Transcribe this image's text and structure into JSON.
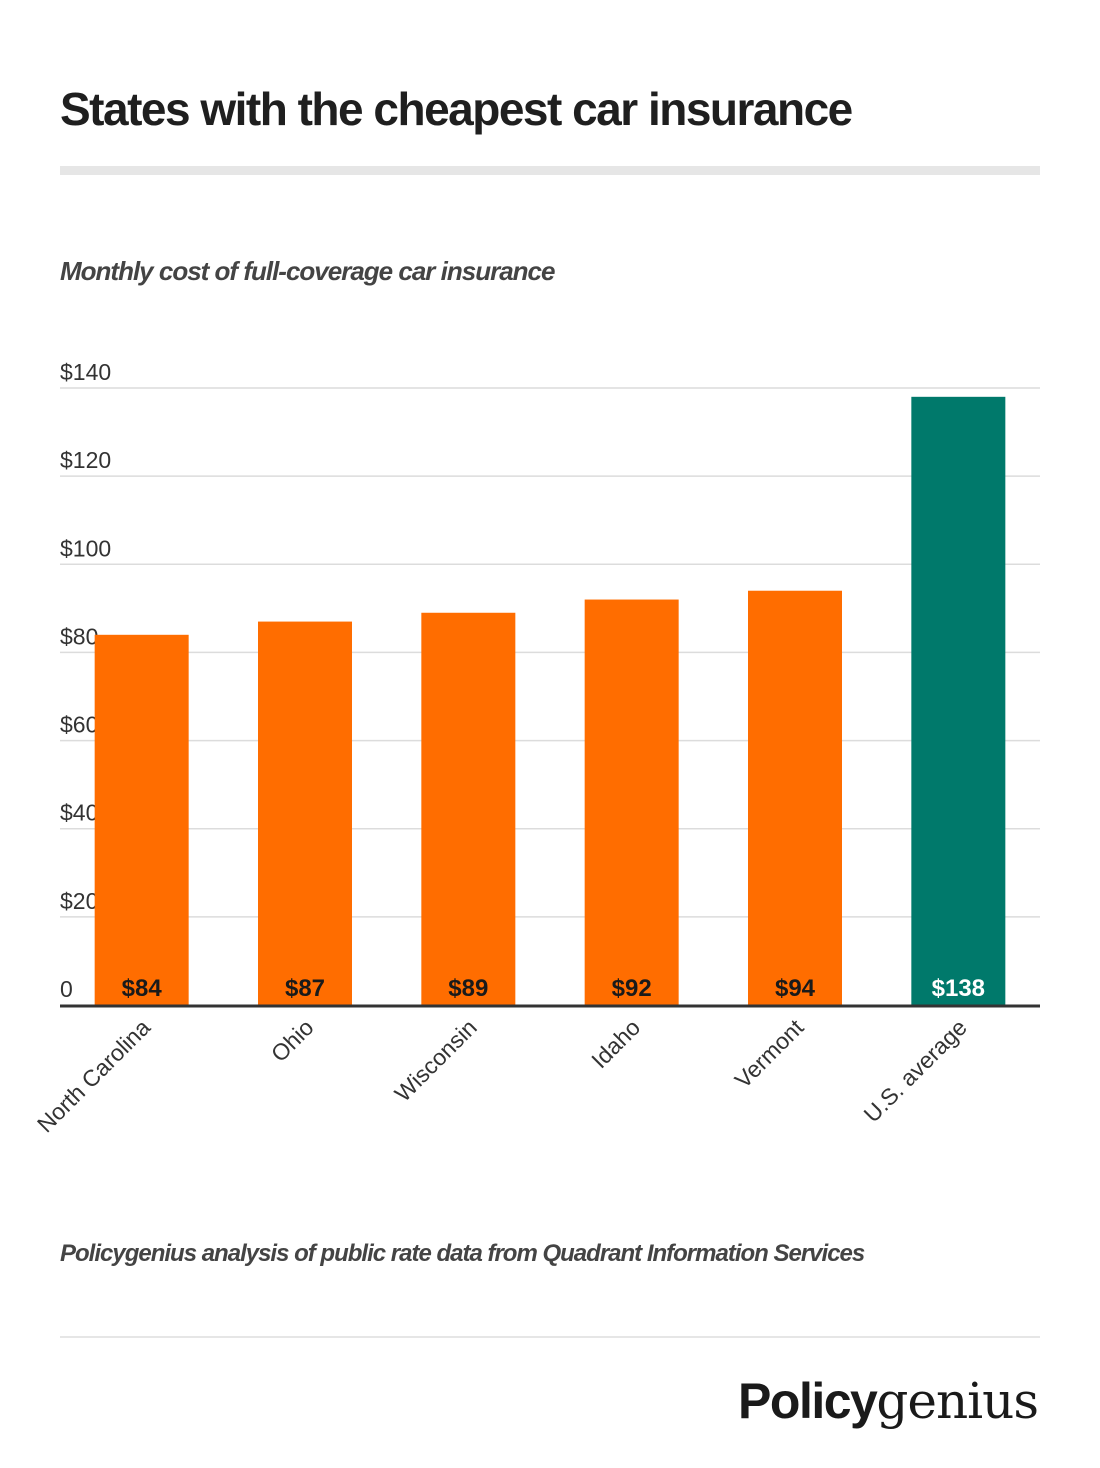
{
  "header": {
    "title": "States with the cheapest car insurance",
    "subtitle": "Monthly cost of full-coverage car insurance"
  },
  "chart_data": {
    "type": "bar",
    "title": "States with the cheapest car insurance",
    "subtitle": "Monthly cost of full-coverage car insurance",
    "xlabel": "",
    "ylabel": "",
    "categories": [
      "North Carolina",
      "Ohio",
      "Wisconsin",
      "Idaho",
      "Vermont",
      "U.S. average"
    ],
    "values": [
      84,
      87,
      89,
      92,
      94,
      138
    ],
    "data_labels": [
      "$84",
      "$87",
      "$89",
      "$92",
      "$94",
      "$138"
    ],
    "ylim": [
      0,
      140
    ],
    "yticks": [
      0,
      20,
      40,
      60,
      80,
      100,
      120,
      140
    ],
    "ytick_labels": [
      "0",
      "$20",
      "$40",
      "$60",
      "$80",
      "$100",
      "$120",
      "$140"
    ],
    "grid": true,
    "legend": "none",
    "colors": {
      "states": "#ff6d00",
      "average": "#00796b",
      "label_on_orange": "#1a1a1a",
      "label_on_green": "#ffffff"
    }
  },
  "footer": {
    "source": "Policygenius analysis of public rate data from Quadrant Information Services",
    "logo_bold": "Policy",
    "logo_serif": "genius"
  }
}
